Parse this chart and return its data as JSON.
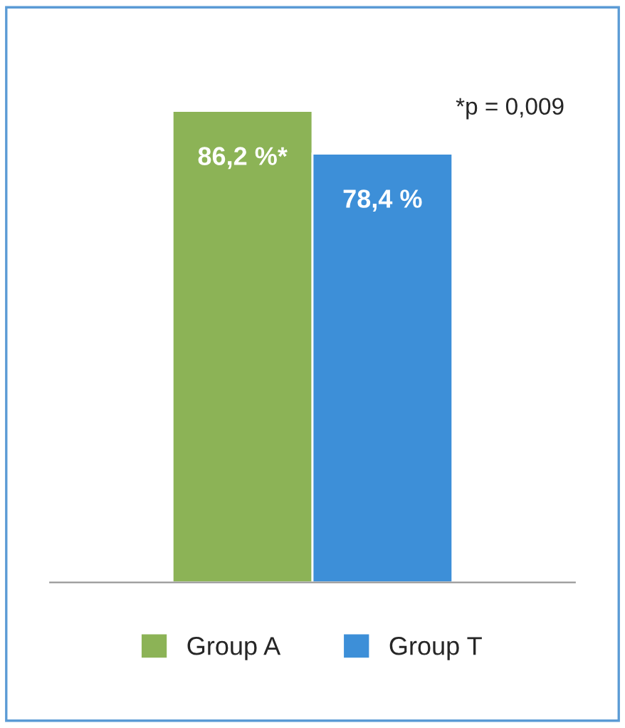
{
  "chart_data": {
    "type": "bar",
    "categories": [
      null
    ],
    "series": [
      {
        "name": "Group A",
        "color": "#8cb356",
        "values": [
          86.2
        ],
        "value_labels": [
          "86,2 %*"
        ]
      },
      {
        "name": "Group T",
        "color": "#3d8fd8",
        "values": [
          78.4
        ],
        "value_labels": [
          "78,4 %"
        ]
      }
    ],
    "annotations": [
      "*p = 0,009"
    ],
    "legend": "bottom",
    "grid": false
  }
}
